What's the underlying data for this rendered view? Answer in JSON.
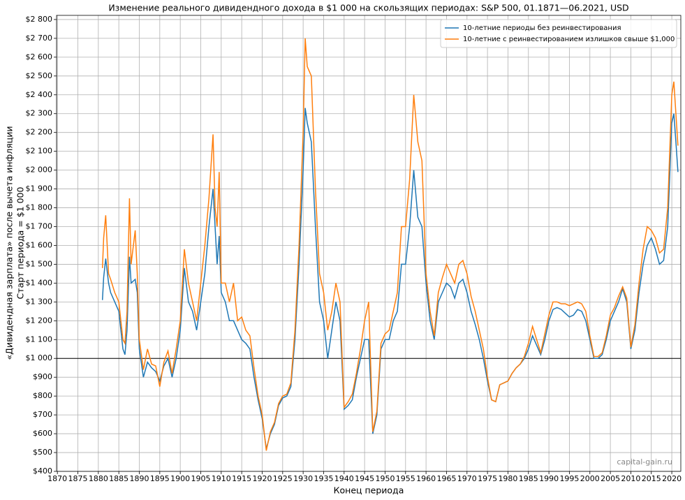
{
  "chart_data": {
    "type": "line",
    "title": "Изменение реального дивидендного дохода в $1 000 на скользящих периодах: S&P 500, 01.1871—06.2021, USD",
    "x_label": "Конец периода",
    "y_label": [
      "«Дивидендная зарплата» после вычета инфляции",
      "Старт периода = $1 000"
    ],
    "watermark": "capital-gain.ru",
    "grid": true,
    "legend": "upper right",
    "reference_line": 1000,
    "xlim": [
      1869.8,
      2022.2
    ],
    "ylim": [
      400,
      2822
    ],
    "xticks": [
      1870,
      1875,
      1880,
      1885,
      1890,
      1895,
      1900,
      1905,
      1910,
      1915,
      1920,
      1925,
      1930,
      1935,
      1940,
      1945,
      1950,
      1955,
      1960,
      1965,
      1970,
      1975,
      1980,
      1985,
      1990,
      1995,
      2000,
      2005,
      2010,
      2015,
      2020
    ],
    "yticks": [
      {
        "value": 400,
        "label": "$400"
      },
      {
        "value": 500,
        "label": "$500"
      },
      {
        "value": 600,
        "label": "$600"
      },
      {
        "value": 700,
        "label": "$700"
      },
      {
        "value": 800,
        "label": "$800"
      },
      {
        "value": 900,
        "label": "$900"
      },
      {
        "value": 1000,
        "label": "$1 000"
      },
      {
        "value": 1100,
        "label": "$1 100"
      },
      {
        "value": 1200,
        "label": "$1 200"
      },
      {
        "value": 1300,
        "label": "$1 300"
      },
      {
        "value": 1400,
        "label": "$1 400"
      },
      {
        "value": 1500,
        "label": "$1 500"
      },
      {
        "value": 1600,
        "label": "$1 600"
      },
      {
        "value": 1700,
        "label": "$1 700"
      },
      {
        "value": 1800,
        "label": "$1 800"
      },
      {
        "value": 1900,
        "label": "$1 900"
      },
      {
        "value": 2000,
        "label": "$2 000"
      },
      {
        "value": 2100,
        "label": "$2 100"
      },
      {
        "value": 2200,
        "label": "$2 200"
      },
      {
        "value": 2300,
        "label": "$2 300"
      },
      {
        "value": 2400,
        "label": "$2 400"
      },
      {
        "value": 2500,
        "label": "$2 500"
      },
      {
        "value": 2600,
        "label": "$2 600"
      },
      {
        "value": 2700,
        "label": "$2 700"
      },
      {
        "value": 2800,
        "label": "$2 800"
      }
    ],
    "x": [
      1881,
      1881.3,
      1881.8,
      1882.5,
      1883,
      1884,
      1885,
      1886,
      1886.5,
      1887,
      1887.6,
      1888,
      1889,
      1889.5,
      1890,
      1891,
      1892,
      1893,
      1894,
      1895,
      1896,
      1897,
      1898,
      1899,
      1900,
      1901,
      1902,
      1903,
      1904,
      1905,
      1906,
      1907,
      1908,
      1908.5,
      1909,
      1909.5,
      1910,
      1911,
      1912,
      1913,
      1914,
      1915,
      1916,
      1917,
      1918,
      1919,
      1920,
      1921,
      1922,
      1923,
      1924,
      1925,
      1926,
      1927,
      1928,
      1929,
      1930,
      1930.5,
      1931,
      1932,
      1933,
      1934,
      1935,
      1936,
      1937,
      1938,
      1939,
      1940,
      1941,
      1942,
      1943,
      1944,
      1945,
      1946,
      1947,
      1948,
      1949,
      1950,
      1951,
      1952,
      1953,
      1954,
      1955,
      1956,
      1957,
      1958,
      1959,
      1960,
      1961,
      1962,
      1963,
      1964,
      1965,
      1966,
      1967,
      1968,
      1969,
      1970,
      1971,
      1972,
      1973,
      1974,
      1975,
      1976,
      1977,
      1978,
      1979,
      1980,
      1981,
      1982,
      1983,
      1984,
      1985,
      1986,
      1987,
      1988,
      1989,
      1990,
      1991,
      1992,
      1993,
      1994,
      1995,
      1996,
      1997,
      1998,
      1999,
      2000,
      2001,
      2002,
      2003,
      2004,
      2005,
      2006,
      2007,
      2008,
      2009,
      2010,
      2011,
      2012,
      2013,
      2014,
      2015,
      2016,
      2017,
      2018,
      2019,
      2020,
      2020.5,
      2021,
      2021.5
    ],
    "series": [
      {
        "name": "10-летние периоды без реинвестирования",
        "color": "#1f77b4",
        "values": [
          1310,
          1430,
          1530,
          1400,
          1350,
          1300,
          1250,
          1050,
          1020,
          1150,
          1540,
          1400,
          1420,
          1350,
          1050,
          900,
          980,
          950,
          930,
          880,
          960,
          1000,
          900,
          1000,
          1150,
          1480,
          1300,
          1250,
          1150,
          1300,
          1450,
          1700,
          1900,
          1700,
          1500,
          1650,
          1350,
          1300,
          1200,
          1200,
          1150,
          1100,
          1080,
          1050,
          900,
          780,
          680,
          520,
          600,
          650,
          750,
          790,
          800,
          850,
          1100,
          1500,
          2000,
          2330,
          2250,
          2150,
          1700,
          1300,
          1200,
          1000,
          1150,
          1300,
          1200,
          730,
          750,
          780,
          900,
          1000,
          1100,
          1100,
          600,
          700,
          1050,
          1100,
          1100,
          1200,
          1250,
          1500,
          1500,
          1700,
          2000,
          1750,
          1700,
          1400,
          1200,
          1100,
          1300,
          1350,
          1400,
          1380,
          1320,
          1400,
          1420,
          1350,
          1250,
          1180,
          1100,
          1000,
          880,
          780,
          770,
          860,
          870,
          880,
          920,
          950,
          970,
          1000,
          1050,
          1120,
          1070,
          1020,
          1100,
          1200,
          1260,
          1270,
          1260,
          1240,
          1220,
          1230,
          1260,
          1250,
          1200,
          1100,
          1000,
          1000,
          1020,
          1100,
          1200,
          1250,
          1300,
          1370,
          1300,
          1050,
          1150,
          1350,
          1500,
          1600,
          1640,
          1580,
          1500,
          1520,
          1700,
          2250,
          2300,
          2150,
          1990
        ]
      },
      {
        "name": "10-летние с реинвестированием излишков свыше $1,000",
        "color": "#ff7f0e",
        "values": [
          1480,
          1640,
          1760,
          1450,
          1420,
          1350,
          1300,
          1100,
          1080,
          1250,
          1850,
          1500,
          1680,
          1450,
          1100,
          940,
          1050,
          970,
          960,
          850,
          980,
          1040,
          920,
          1050,
          1200,
          1580,
          1400,
          1300,
          1200,
          1400,
          1600,
          1850,
          2190,
          1800,
          1700,
          1990,
          1400,
          1400,
          1300,
          1400,
          1200,
          1220,
          1150,
          1120,
          950,
          800,
          700,
          510,
          610,
          660,
          760,
          800,
          810,
          870,
          1150,
          1600,
          2200,
          2700,
          2550,
          2500,
          1900,
          1450,
          1350,
          1150,
          1250,
          1400,
          1300,
          740,
          770,
          810,
          920,
          1050,
          1200,
          1300,
          610,
          720,
          1080,
          1130,
          1150,
          1250,
          1350,
          1700,
          1700,
          1950,
          2400,
          2150,
          2050,
          1450,
          1250,
          1120,
          1350,
          1430,
          1500,
          1450,
          1400,
          1500,
          1520,
          1450,
          1330,
          1250,
          1150,
          1050,
          900,
          780,
          770,
          860,
          870,
          880,
          920,
          950,
          970,
          1010,
          1080,
          1170,
          1100,
          1030,
          1130,
          1230,
          1300,
          1300,
          1290,
          1290,
          1280,
          1290,
          1300,
          1290,
          1250,
          1120,
          1010,
          1010,
          1030,
          1120,
          1230,
          1270,
          1330,
          1380,
          1320,
          1060,
          1180,
          1400,
          1580,
          1700,
          1680,
          1640,
          1560,
          1580,
          1800,
          2400,
          2470,
          2300,
          2130
        ]
      }
    ]
  }
}
